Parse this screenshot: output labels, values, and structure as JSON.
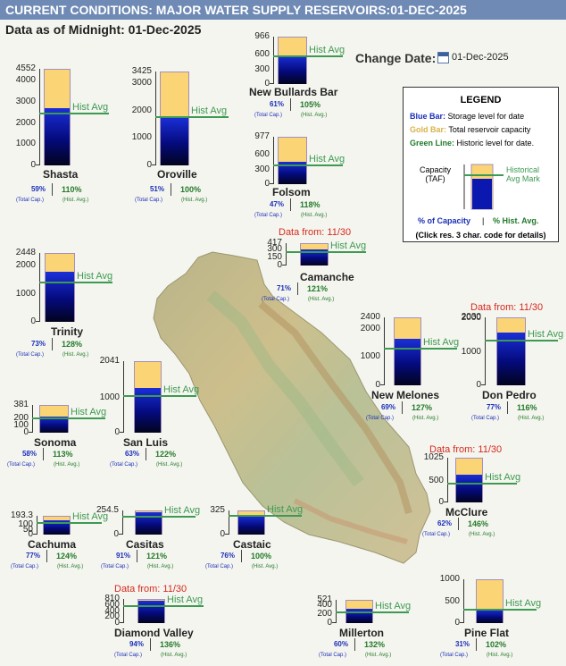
{
  "title": "CURRENT CONDITIONS: MAJOR WATER SUPPLY RESERVOIRS:01-DEC-2025",
  "as_of": "Data as of Midnight: 01-Dec-2025",
  "change_date": {
    "label": "Change Date:",
    "value": "01-Dec-2025"
  },
  "hist_label": "Hist Avg",
  "sub_cap": "(Total Cap.)",
  "sub_avg": "(Hist. Avg.)",
  "reservoirs": [
    {
      "name": "Shasta",
      "capacity": 4552,
      "storage": 2683,
      "hist": 2440,
      "ticks": [
        "4552",
        "4000",
        "3000",
        "2000",
        "1000",
        "0"
      ],
      "pct_cap": "59%",
      "pct_avg": "110%",
      "from": ""
    },
    {
      "name": "Oroville",
      "capacity": 3425,
      "storage": 1751,
      "hist": 1751,
      "ticks": [
        "3425",
        "3000",
        "2000",
        "1000",
        "0"
      ],
      "pct_cap": "51%",
      "pct_avg": "100%",
      "from": ""
    },
    {
      "name": "New Bullards Bar",
      "capacity": 966,
      "storage": 589,
      "hist": 561,
      "ticks": [
        "966",
        "600",
        "300",
        "0"
      ],
      "pct_cap": "61%",
      "pct_avg": "105%",
      "from": ""
    },
    {
      "name": "Folsom",
      "capacity": 977,
      "storage": 459,
      "hist": 389,
      "ticks": [
        "977",
        "600",
        "300",
        "0"
      ],
      "pct_cap": "47%",
      "pct_avg": "118%",
      "from": ""
    },
    {
      "name": "Trinity",
      "capacity": 2448,
      "storage": 1787,
      "hist": 1396,
      "ticks": [
        "2448",
        "2000",
        "1000",
        "0"
      ],
      "pct_cap": "73%",
      "pct_avg": "128%",
      "from": ""
    },
    {
      "name": "Camanche",
      "capacity": 417,
      "storage": 296,
      "hist": 245,
      "ticks": [
        "417",
        "300",
        "150",
        "0"
      ],
      "pct_cap": "71%",
      "pct_avg": "121%",
      "from": "Data from: 11/30"
    },
    {
      "name": "New Melones",
      "capacity": 2400,
      "storage": 1656,
      "hist": 1304,
      "ticks": [
        "2400",
        "2000",
        "1000",
        "0"
      ],
      "pct_cap": "69%",
      "pct_avg": "127%",
      "from": ""
    },
    {
      "name": "Don Pedro",
      "capacity": 2030,
      "storage": 1563,
      "hist": 1347,
      "ticks": [
        "2030",
        "2000",
        "1000",
        "0"
      ],
      "pct_cap": "77%",
      "pct_avg": "116%",
      "from": "Data from: 11/30"
    },
    {
      "name": "Sonoma",
      "capacity": 381,
      "storage": 221,
      "hist": 196,
      "ticks": [
        "381",
        "200",
        "100",
        "0"
      ],
      "pct_cap": "58%",
      "pct_avg": "113%",
      "from": ""
    },
    {
      "name": "San Luis",
      "capacity": 2041,
      "storage": 1286,
      "hist": 1054,
      "ticks": [
        "2041",
        "1000",
        "0"
      ],
      "pct_cap": "63%",
      "pct_avg": "122%",
      "from": ""
    },
    {
      "name": "McClure",
      "capacity": 1025,
      "storage": 636,
      "hist": 436,
      "ticks": [
        "1025",
        "500",
        "0"
      ],
      "pct_cap": "62%",
      "pct_avg": "146%",
      "from": "Data from: 11/30"
    },
    {
      "name": "Cachuma",
      "capacity": 193.3,
      "storage": 148.8,
      "hist": 120,
      "ticks": [
        "193.3",
        "100",
        "50",
        "0"
      ],
      "pct_cap": "77%",
      "pct_avg": "124%",
      "from": ""
    },
    {
      "name": "Casitas",
      "capacity": 254.5,
      "storage": 231.6,
      "hist": 191.4,
      "ticks": [
        "254.5",
        "0"
      ],
      "pct_cap": "91%",
      "pct_avg": "121%",
      "from": ""
    },
    {
      "name": "Castaic",
      "capacity": 325,
      "storage": 247,
      "hist": 247,
      "ticks": [
        "325",
        "0"
      ],
      "pct_cap": "76%",
      "pct_avg": "100%",
      "from": ""
    },
    {
      "name": "Diamond Valley",
      "capacity": 810,
      "storage": 761,
      "hist": 560,
      "ticks": [
        "810",
        "600",
        "400",
        "200",
        "0"
      ],
      "pct_cap": "94%",
      "pct_avg": "136%",
      "from": "Data from: 11/30"
    },
    {
      "name": "Millerton",
      "capacity": 521,
      "storage": 313,
      "hist": 237,
      "ticks": [
        "521",
        "400",
        "200",
        "0"
      ],
      "pct_cap": "60%",
      "pct_avg": "132%",
      "from": ""
    },
    {
      "name": "Pine Flat",
      "capacity": 1000,
      "storage": 310,
      "hist": 304,
      "ticks": [
        "1000",
        "500",
        "0"
      ],
      "pct_cap": "31%",
      "pct_avg": "102%",
      "from": ""
    }
  ],
  "legend": {
    "title": "LEGEND",
    "blue_label": "Blue Bar:",
    "blue_text": "Storage level for date",
    "gold_label": "Gold Bar:",
    "gold_text": "Total reservoir capacity",
    "green_label": "Green Line:",
    "green_text": "Historic level for date.",
    "capacity_line1": "Capacity",
    "capacity_line2": "(TAF)",
    "hist_line1": "Historical",
    "hist_line2": "Avg Mark",
    "pct_cap": "% of Capacity",
    "sep": "|",
    "pct_avg": "% Hist. Avg.",
    "click": "(Click res. 3 char. code for details)"
  },
  "colors": {
    "storage": "#0a18b0",
    "capacity": "#fbd575",
    "hist": "#3d9a52",
    "title_bar": "#6e8ab5",
    "note": "#d42a1e"
  }
}
